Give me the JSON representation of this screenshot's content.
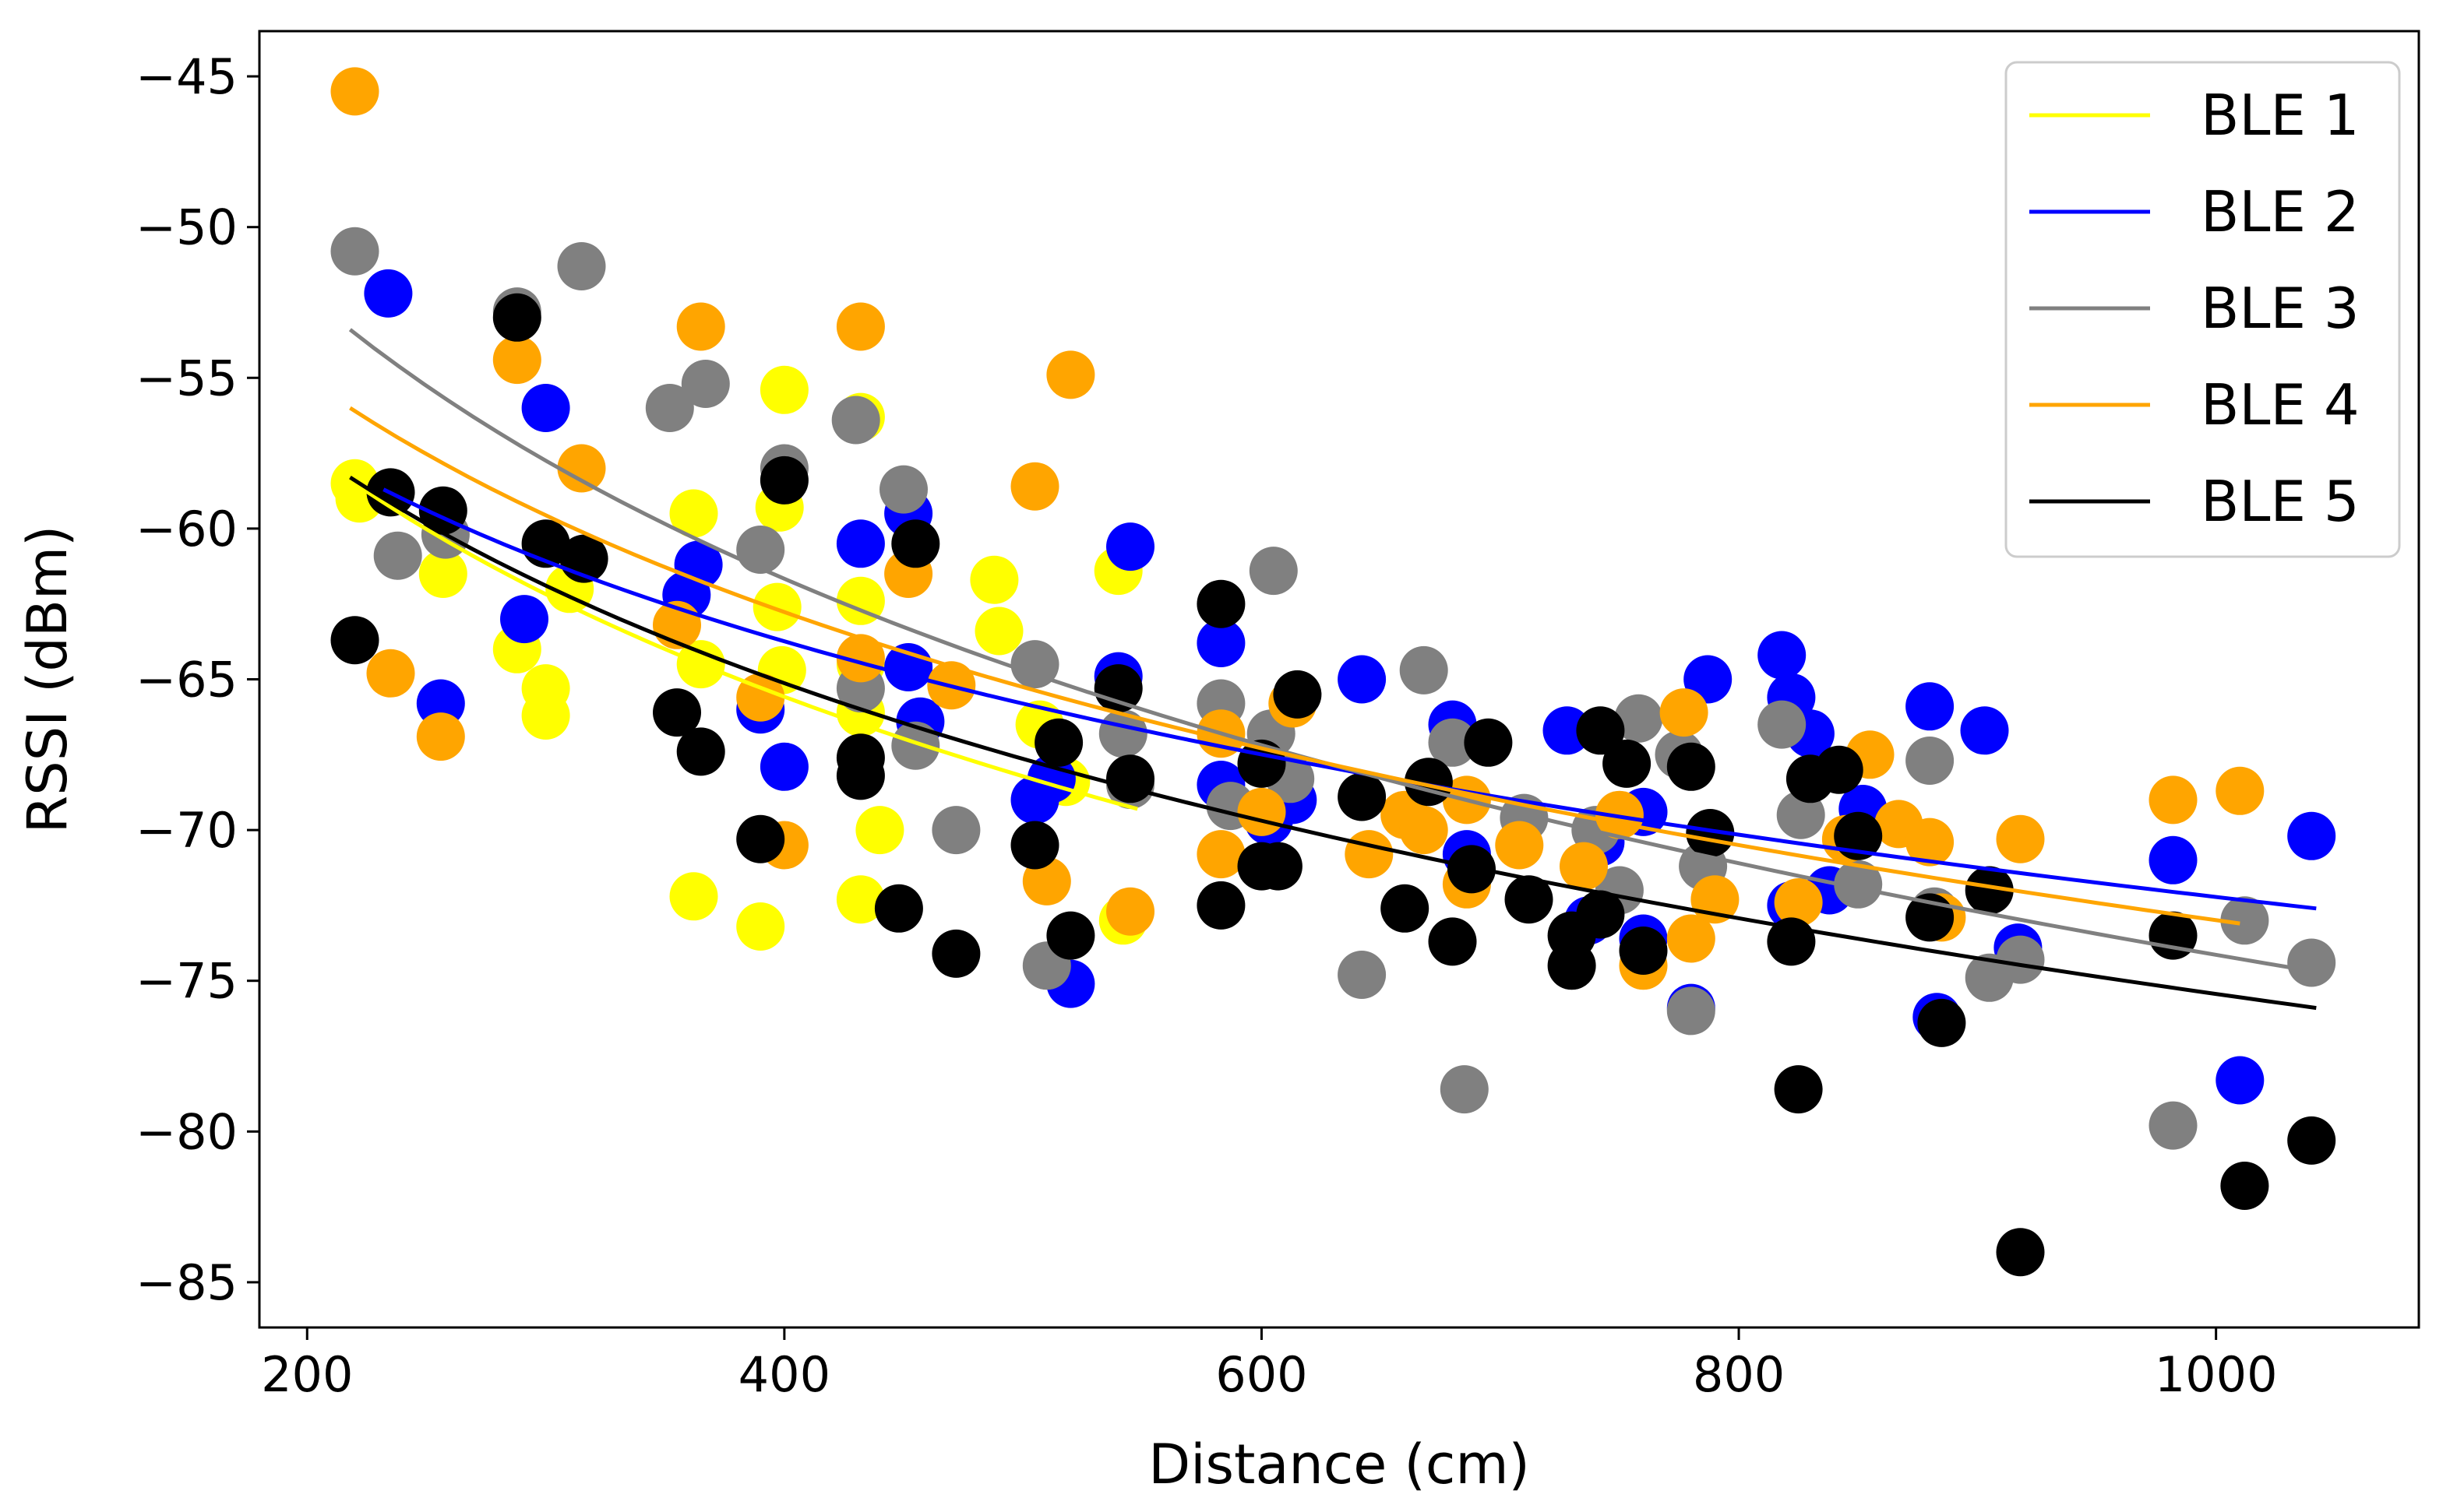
{
  "chart_data": {
    "type": "scatter",
    "title": "",
    "xlabel": "Distance (cm)",
    "ylabel": "RSSI (dBm)",
    "xlim": [
      180,
      1085
    ],
    "ylim": [
      -86.5,
      -43.5
    ],
    "xticks": [
      200,
      400,
      600,
      800,
      1000
    ],
    "yticks": [
      -45,
      -50,
      -55,
      -60,
      -65,
      -70,
      -75,
      -80,
      -85
    ],
    "xtick_labels": [
      "200",
      "400",
      "600",
      "800",
      "1000"
    ],
    "ytick_labels": [
      "−45",
      "−50",
      "−55",
      "−60",
      "−65",
      "−70",
      "−75",
      "−80",
      "−85"
    ],
    "grid": false,
    "legend_position": "top-right",
    "series": [
      {
        "name": "BLE 1",
        "color": "#ffff00",
        "fit": {
          "x_range": [
            218,
            548
          ],
          "y_range": [
            -58.4,
            -69.3
          ]
        },
        "points": [
          [
            220,
            -58.5
          ],
          [
            222,
            -59.0
          ],
          [
            257,
            -61.5
          ],
          [
            288,
            -64.0
          ],
          [
            300,
            -66.2
          ],
          [
            300,
            -65.3
          ],
          [
            310,
            -62.0
          ],
          [
            362,
            -59.5
          ],
          [
            365,
            -64.5
          ],
          [
            362,
            -72.2
          ],
          [
            390,
            -73.2
          ],
          [
            400,
            -55.4
          ],
          [
            398,
            -59.3
          ],
          [
            397,
            -62.6
          ],
          [
            399,
            -64.7
          ],
          [
            432,
            -56.3
          ],
          [
            432,
            -62.4
          ],
          [
            432,
            -64.5
          ],
          [
            432,
            -66.1
          ],
          [
            432,
            -72.3
          ],
          [
            440,
            -70.0
          ],
          [
            488,
            -61.7
          ],
          [
            490,
            -63.4
          ],
          [
            507,
            -66.5
          ],
          [
            518,
            -68.4
          ],
          [
            540,
            -61.4
          ],
          [
            542,
            -73.0
          ]
        ]
      },
      {
        "name": "BLE 2",
        "color": "#0000ff",
        "fit": {
          "x_range": [
            232,
            1042
          ],
          "y_range": [
            -58.7,
            -72.6
          ]
        },
        "points": [
          [
            234,
            -52.2
          ],
          [
            256,
            -65.8
          ],
          [
            291,
            -63.0
          ],
          [
            300,
            -56.0
          ],
          [
            359,
            -62.2
          ],
          [
            364,
            -61.2
          ],
          [
            390,
            -66.0
          ],
          [
            400,
            -67.9
          ],
          [
            432,
            -60.5
          ],
          [
            452,
            -59.5
          ],
          [
            452,
            -64.6
          ],
          [
            457,
            -66.4
          ],
          [
            505,
            -69.0
          ],
          [
            512,
            -68.3
          ],
          [
            520,
            -75.1
          ],
          [
            540,
            -64.9
          ],
          [
            545,
            -60.6
          ],
          [
            583,
            -63.8
          ],
          [
            583,
            -68.5
          ],
          [
            603,
            -69.7
          ],
          [
            613,
            -69.0
          ],
          [
            642,
            -65.0
          ],
          [
            680,
            -66.5
          ],
          [
            686,
            -70.8
          ],
          [
            728,
            -66.7
          ],
          [
            737,
            -73.0
          ],
          [
            742,
            -70.4
          ],
          [
            760,
            -73.6
          ],
          [
            760,
            -69.4
          ],
          [
            780,
            -75.9
          ],
          [
            787,
            -65.0
          ],
          [
            818,
            -64.2
          ],
          [
            822,
            -65.6
          ],
          [
            822,
            -72.5
          ],
          [
            830,
            -66.8
          ],
          [
            838,
            -72.0
          ],
          [
            852,
            -69.3
          ],
          [
            880,
            -65.9
          ],
          [
            883,
            -76.2
          ],
          [
            903,
            -66.7
          ],
          [
            917,
            -73.9
          ],
          [
            982,
            -71.0
          ],
          [
            1010,
            -78.3
          ],
          [
            1040,
            -70.2
          ]
        ]
      },
      {
        "name": "BLE 3",
        "color": "#808080",
        "fit": {
          "x_range": [
            218,
            1042
          ],
          "y_range": [
            -53.4,
            -74.7
          ]
        },
        "points": [
          [
            220,
            -50.8
          ],
          [
            238,
            -60.9
          ],
          [
            258,
            -60.2
          ],
          [
            288,
            -52.8
          ],
          [
            315,
            -51.3
          ],
          [
            352,
            -56.0
          ],
          [
            367,
            -55.2
          ],
          [
            390,
            -60.7
          ],
          [
            400,
            -58.0
          ],
          [
            430,
            -56.4
          ],
          [
            432,
            -65.3
          ],
          [
            450,
            -58.7
          ],
          [
            455,
            -67.2
          ],
          [
            472,
            -70.0
          ],
          [
            505,
            -64.5
          ],
          [
            510,
            -74.5
          ],
          [
            542,
            -66.8
          ],
          [
            545,
            -68.5
          ],
          [
            583,
            -65.8
          ],
          [
            587,
            -69.2
          ],
          [
            605,
            -61.4
          ],
          [
            604,
            -66.8
          ],
          [
            612,
            -68.3
          ],
          [
            642,
            -74.8
          ],
          [
            668,
            -64.7
          ],
          [
            680,
            -67.1
          ],
          [
            685,
            -78.6
          ],
          [
            710,
            -69.6
          ],
          [
            740,
            -70.0
          ],
          [
            750,
            -72.0
          ],
          [
            758,
            -66.3
          ],
          [
            775,
            -67.5
          ],
          [
            780,
            -76.0
          ],
          [
            785,
            -71.2
          ],
          [
            818,
            -66.5
          ],
          [
            826,
            -69.5
          ],
          [
            850,
            -71.8
          ],
          [
            880,
            -67.7
          ],
          [
            882,
            -72.7
          ],
          [
            905,
            -74.9
          ],
          [
            918,
            -74.3
          ],
          [
            982,
            -79.8
          ],
          [
            1012,
            -73.0
          ],
          [
            1040,
            -74.4
          ]
        ]
      },
      {
        "name": "BLE 4",
        "color": "#ffa500",
        "fit": {
          "x_range": [
            218,
            1010
          ],
          "y_range": [
            -56.0,
            -73.1
          ]
        },
        "points": [
          [
            220,
            -45.5
          ],
          [
            235,
            -64.8
          ],
          [
            256,
            -66.9
          ],
          [
            288,
            -54.4
          ],
          [
            315,
            -58.0
          ],
          [
            355,
            -63.2
          ],
          [
            365,
            -53.3
          ],
          [
            390,
            -65.6
          ],
          [
            400,
            -70.5
          ],
          [
            432,
            -53.3
          ],
          [
            432,
            -64.3
          ],
          [
            452,
            -61.5
          ],
          [
            470,
            -65.2
          ],
          [
            505,
            -58.6
          ],
          [
            510,
            -71.7
          ],
          [
            520,
            -54.9
          ],
          [
            545,
            -72.7
          ],
          [
            583,
            -66.8
          ],
          [
            583,
            -70.8
          ],
          [
            600,
            -69.4
          ],
          [
            613,
            -65.8
          ],
          [
            645,
            -70.8
          ],
          [
            660,
            -69.5
          ],
          [
            668,
            -70.0
          ],
          [
            686,
            -69.0
          ],
          [
            686,
            -71.8
          ],
          [
            708,
            -70.5
          ],
          [
            735,
            -71.2
          ],
          [
            750,
            -69.5
          ],
          [
            760,
            -74.5
          ],
          [
            777,
            -66.1
          ],
          [
            780,
            -73.6
          ],
          [
            790,
            -72.3
          ],
          [
            825,
            -72.4
          ],
          [
            845,
            -70.3
          ],
          [
            855,
            -67.5
          ],
          [
            867,
            -69.8
          ],
          [
            880,
            -70.4
          ],
          [
            885,
            -72.9
          ],
          [
            918,
            -70.3
          ],
          [
            982,
            -69.0
          ],
          [
            1010,
            -68.7
          ]
        ]
      },
      {
        "name": "BLE 5",
        "color": "#000000",
        "fit": {
          "x_range": [
            218,
            1042
          ],
          "y_range": [
            -58.3,
            -75.9
          ]
        },
        "points": [
          [
            220,
            -63.7
          ],
          [
            235,
            -58.8
          ],
          [
            257,
            -59.4
          ],
          [
            288,
            -53.0
          ],
          [
            300,
            -60.5
          ],
          [
            316,
            -61.0
          ],
          [
            355,
            -66.1
          ],
          [
            365,
            -67.4
          ],
          [
            390,
            -70.3
          ],
          [
            400,
            -58.4
          ],
          [
            432,
            -67.6
          ],
          [
            432,
            -68.2
          ],
          [
            448,
            -72.6
          ],
          [
            455,
            -60.5
          ],
          [
            472,
            -74.1
          ],
          [
            505,
            -70.5
          ],
          [
            515,
            -67.1
          ],
          [
            520,
            -73.5
          ],
          [
            540,
            -65.3
          ],
          [
            545,
            -68.3
          ],
          [
            583,
            -62.5
          ],
          [
            583,
            -72.5
          ],
          [
            600,
            -67.8
          ],
          [
            600,
            -71.2
          ],
          [
            607,
            -71.2
          ],
          [
            615,
            -65.5
          ],
          [
            642,
            -68.9
          ],
          [
            660,
            -72.6
          ],
          [
            670,
            -68.4
          ],
          [
            680,
            -73.7
          ],
          [
            688,
            -71.3
          ],
          [
            695,
            -67.1
          ],
          [
            712,
            -72.3
          ],
          [
            730,
            -74.5
          ],
          [
            730,
            -73.5
          ],
          [
            742,
            -66.7
          ],
          [
            742,
            -72.8
          ],
          [
            753,
            -67.8
          ],
          [
            760,
            -74.0
          ],
          [
            780,
            -67.9
          ],
          [
            788,
            -70.1
          ],
          [
            822,
            -73.7
          ],
          [
            825,
            -78.6
          ],
          [
            830,
            -68.3
          ],
          [
            842,
            -68.0
          ],
          [
            850,
            -70.2
          ],
          [
            880,
            -72.9
          ],
          [
            885,
            -76.4
          ],
          [
            905,
            -72.0
          ],
          [
            918,
            -84.0
          ],
          [
            982,
            -73.5
          ],
          [
            1012,
            -81.8
          ],
          [
            1040,
            -80.3
          ]
        ]
      }
    ]
  }
}
